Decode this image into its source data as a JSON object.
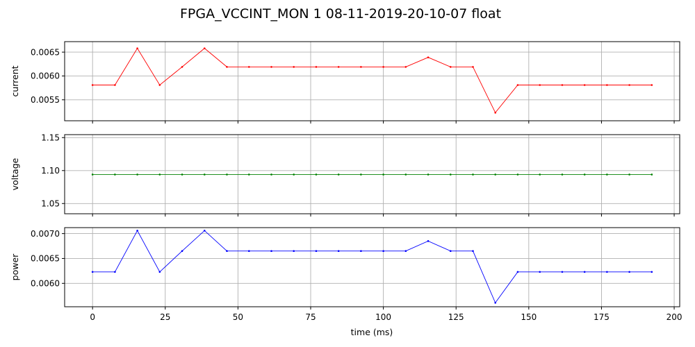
{
  "chart_data": {
    "type": "line",
    "title": "FPGA_VCCINT_MON   1   08-11-2019-20-10-07   float",
    "xlabel": "time (ms)",
    "x": [
      0,
      7.7,
      15.4,
      23.1,
      30.8,
      38.5,
      46.2,
      53.8,
      61.5,
      69.2,
      76.9,
      84.6,
      92.3,
      100,
      107.7,
      115.4,
      123.1,
      130.8,
      138.5,
      146.2,
      153.8,
      161.5,
      169.2,
      176.9,
      184.6,
      192.3
    ],
    "xlim": [
      -9.6,
      201.9
    ],
    "xticks": [
      0,
      25,
      50,
      75,
      100,
      125,
      150,
      175,
      200
    ],
    "xtick_labels": [
      "0",
      "25",
      "50",
      "75",
      "100",
      "125",
      "150",
      "175",
      "200"
    ],
    "grid": true,
    "panels": [
      {
        "ylabel": "current",
        "color": "#ff0000",
        "ylim": [
          0.00506,
          0.00672
        ],
        "yticks": [
          0.0055,
          0.006,
          0.0065
        ],
        "ytick_labels": [
          "0.0055",
          "0.0060",
          "0.0065"
        ],
        "values": [
          0.00581,
          0.00581,
          0.00658,
          0.00581,
          0.00619,
          0.00658,
          0.00619,
          0.00619,
          0.00619,
          0.00619,
          0.00619,
          0.00619,
          0.00619,
          0.00619,
          0.00619,
          0.00639,
          0.00619,
          0.00619,
          0.00523,
          0.00581,
          0.00581,
          0.00581,
          0.00581,
          0.00581,
          0.00581,
          0.00581
        ]
      },
      {
        "ylabel": "voltage",
        "color": "#008000",
        "ylim": [
          1.0345,
          1.1545
        ],
        "yticks": [
          1.05,
          1.1,
          1.15
        ],
        "ytick_labels": [
          "1.05",
          "1.10",
          "1.15"
        ],
        "values": [
          1.094,
          1.094,
          1.094,
          1.094,
          1.094,
          1.094,
          1.094,
          1.094,
          1.094,
          1.094,
          1.094,
          1.094,
          1.094,
          1.094,
          1.094,
          1.094,
          1.094,
          1.094,
          1.094,
          1.094,
          1.094,
          1.094,
          1.094,
          1.094,
          1.094,
          1.094
        ]
      },
      {
        "ylabel": "power",
        "color": "#0000ff",
        "ylim": [
          0.00553,
          0.00712
        ],
        "yticks": [
          0.006,
          0.0065,
          0.007
        ],
        "ytick_labels": [
          "0.0060",
          "0.0065",
          "0.0070"
        ],
        "values": [
          0.00623,
          0.00623,
          0.00706,
          0.00623,
          0.00665,
          0.00706,
          0.00665,
          0.00665,
          0.00665,
          0.00665,
          0.00665,
          0.00665,
          0.00665,
          0.00665,
          0.00665,
          0.00685,
          0.00665,
          0.00665,
          0.00561,
          0.00623,
          0.00623,
          0.00623,
          0.00623,
          0.00623,
          0.00623,
          0.00623
        ]
      }
    ]
  }
}
